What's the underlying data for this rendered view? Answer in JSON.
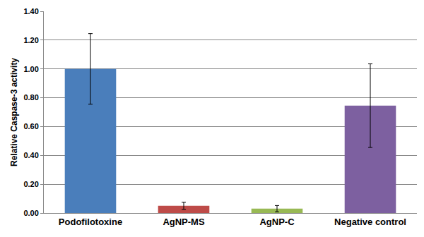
{
  "chart_data": {
    "type": "bar",
    "y_label": "Relative Caspase-3 activity",
    "categories": [
      "Podofilotoxine",
      "AgNP-MS",
      "AgNP-C",
      "Negative control"
    ],
    "values": [
      1.0,
      0.05,
      0.03,
      0.745
    ],
    "errors": [
      0.245,
      0.025,
      0.022,
      0.29
    ],
    "colors": [
      "#4a7ebb",
      "#be4b48",
      "#98b954",
      "#7d60a0"
    ],
    "ylim": [
      0,
      1.4
    ],
    "yticks": [
      {
        "value": 0,
        "label": "0.00"
      },
      {
        "value": 0.2,
        "label": "0.20"
      },
      {
        "value": 0.4,
        "label": "0.40"
      },
      {
        "value": 0.6,
        "label": "0.60"
      },
      {
        "value": 0.8,
        "label": "0.80"
      },
      {
        "value": 1.0,
        "label": "1.00"
      },
      {
        "value": 1.2,
        "label": "1.20"
      },
      {
        "value": 1.4,
        "label": "1.40"
      }
    ],
    "grid": true
  }
}
